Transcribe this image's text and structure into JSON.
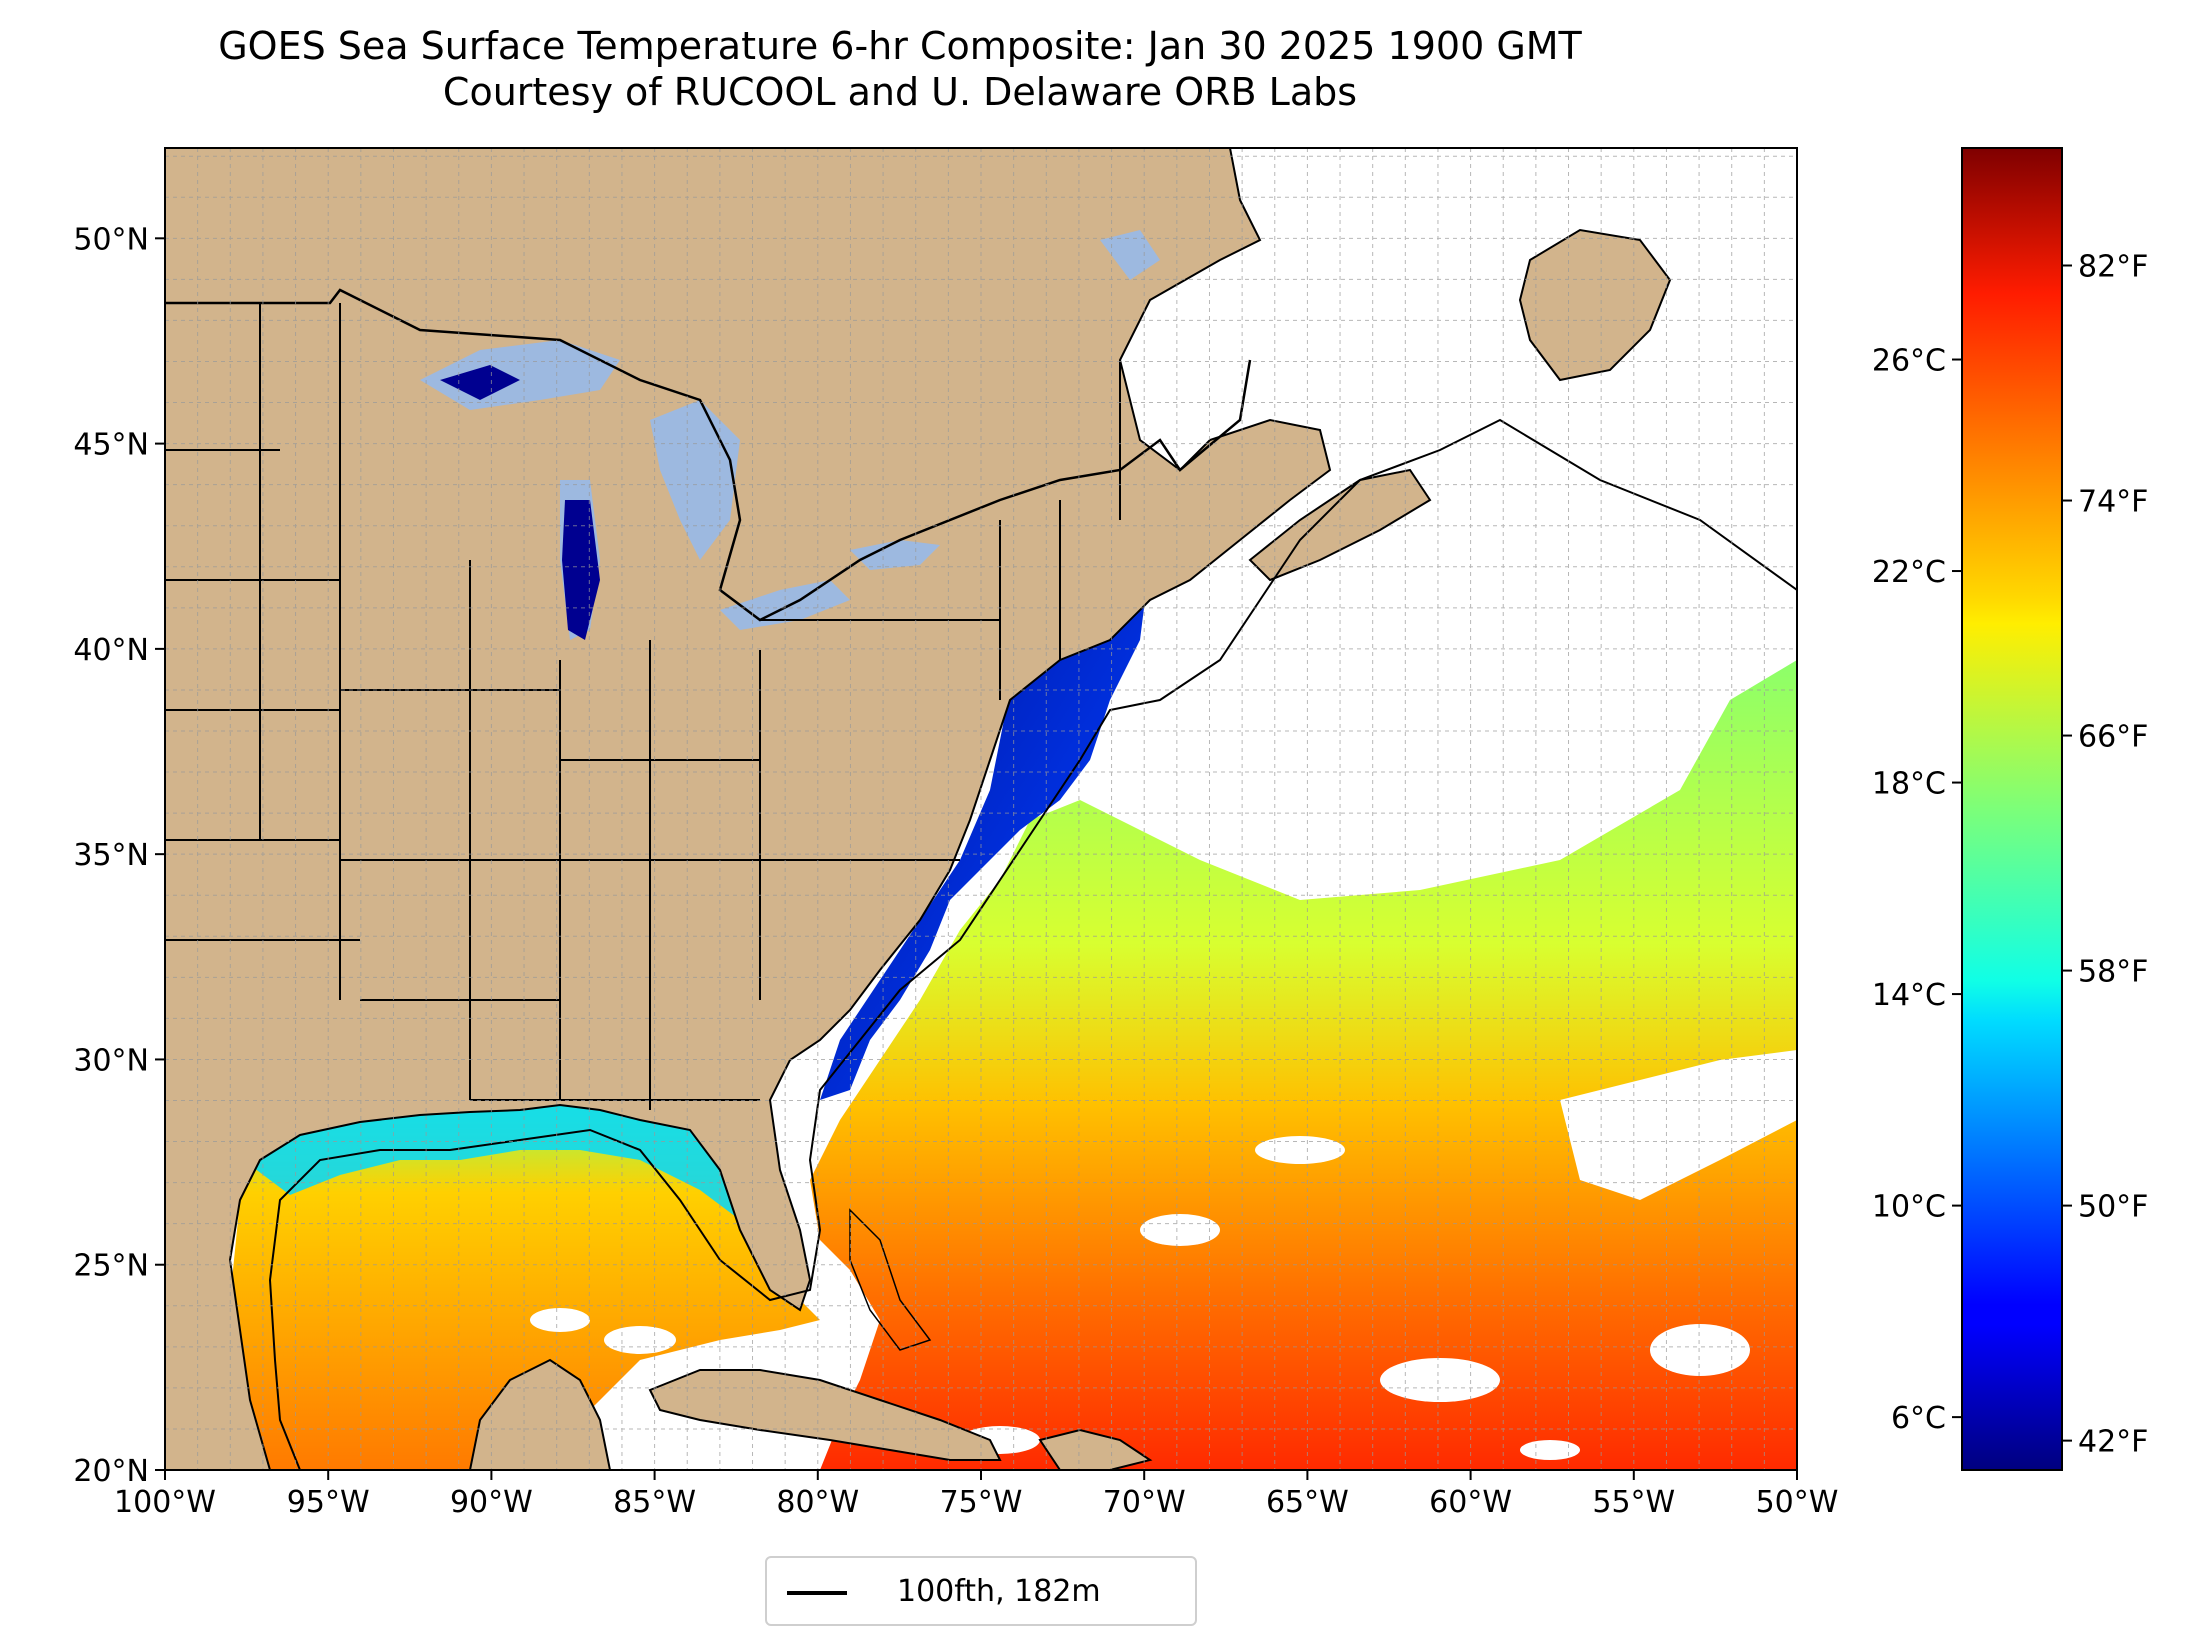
{
  "title": {
    "line1": "GOES Sea Surface Temperature 6-hr Composite: Jan 30 2025 1900 GMT",
    "line2": "Courtesy of RUCOOL and U. Delaware ORB Labs"
  },
  "map": {
    "lon_range": [
      -100,
      -50
    ],
    "lat_range": [
      20,
      52.2
    ],
    "x_ticks": [
      {
        "value": -100,
        "label": "100°W"
      },
      {
        "value": -95,
        "label": "95°W"
      },
      {
        "value": -90,
        "label": "90°W"
      },
      {
        "value": -85,
        "label": "85°W"
      },
      {
        "value": -80,
        "label": "80°W"
      },
      {
        "value": -75,
        "label": "75°W"
      },
      {
        "value": -70,
        "label": "70°W"
      },
      {
        "value": -65,
        "label": "65°W"
      },
      {
        "value": -60,
        "label": "60°W"
      },
      {
        "value": -55,
        "label": "55°W"
      },
      {
        "value": -50,
        "label": "50°W"
      }
    ],
    "y_ticks": [
      {
        "value": 20,
        "label": "20°N"
      },
      {
        "value": 25,
        "label": "25°N"
      },
      {
        "value": 30,
        "label": "30°N"
      },
      {
        "value": 35,
        "label": "35°N"
      },
      {
        "value": 40,
        "label": "40°N"
      },
      {
        "value": 45,
        "label": "45°N"
      },
      {
        "value": 50,
        "label": "50°N"
      }
    ],
    "grid": true,
    "land_color": "#d2b48c",
    "lake_color": "#9db9e0"
  },
  "colorbar": {
    "colormap": "jet",
    "range_c": [
      5.0,
      30.0
    ],
    "celsius_ticks": [
      {
        "value": 6,
        "label": "6°C"
      },
      {
        "value": 10,
        "label": "10°C"
      },
      {
        "value": 14,
        "label": "14°C"
      },
      {
        "value": 18,
        "label": "18°C"
      },
      {
        "value": 22,
        "label": "22°C"
      },
      {
        "value": 26,
        "label": "26°C"
      }
    ],
    "fahrenheit_ticks": [
      {
        "value": 42,
        "label": "42°F"
      },
      {
        "value": 50,
        "label": "50°F"
      },
      {
        "value": 58,
        "label": "58°F"
      },
      {
        "value": 66,
        "label": "66°F"
      },
      {
        "value": 74,
        "label": "74°F"
      },
      {
        "value": 82,
        "label": "82°F"
      }
    ]
  },
  "legend": {
    "label": "100fth, 182m",
    "line_color": "#000000"
  }
}
